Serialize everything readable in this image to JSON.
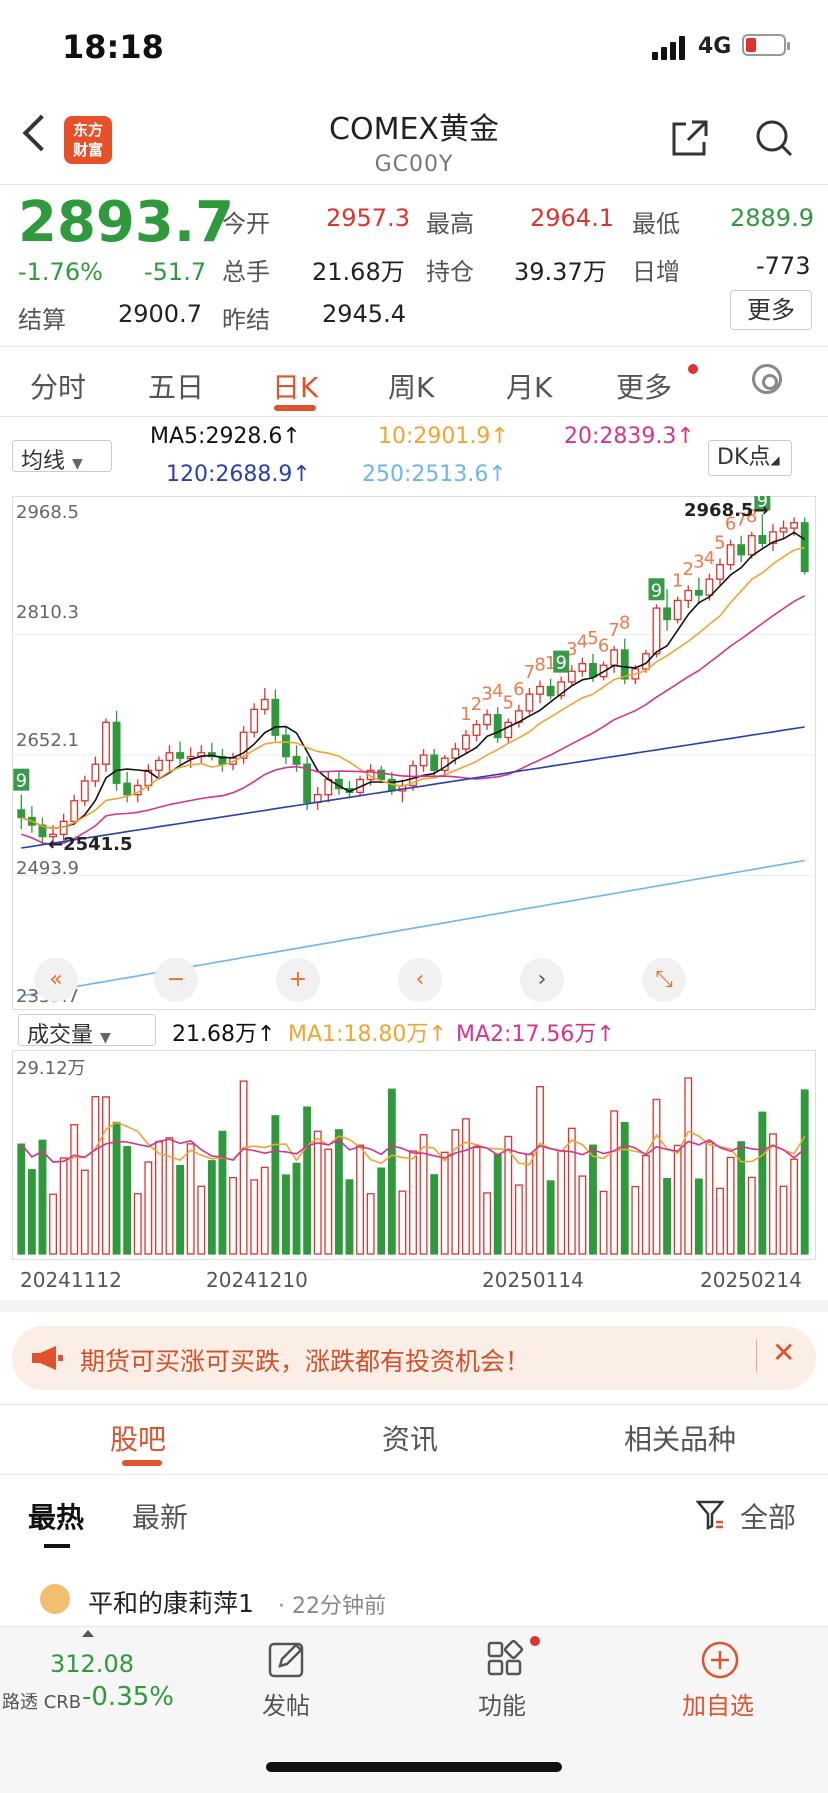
{
  "status_bar": {
    "time": "18:18",
    "network": "4G"
  },
  "header": {
    "logo": [
      "东方",
      "财富"
    ],
    "title": "COMEX黄金",
    "code": "GC00Y"
  },
  "quote": {
    "price": "2893.7",
    "change_pct": "-1.76%",
    "change": "-51.7",
    "open_label": "今开",
    "open": "2957.3",
    "high_label": "最高",
    "high": "2964.1",
    "low_label": "最低",
    "low": "2889.9",
    "volume_label": "总手",
    "volume": "21.68万",
    "oi_label": "持仓",
    "oi": "39.37万",
    "daily_inc_label": "日增",
    "daily_inc": "-773",
    "settle_label": "结算",
    "settle": "2900.7",
    "prev_settle_label": "昨结",
    "prev_settle": "2945.4",
    "more": "更多"
  },
  "tabs": [
    "分时",
    "五日",
    "日K",
    "周K",
    "月K",
    "更多"
  ],
  "ma_legend": {
    "selector": "均线",
    "ma5": "MA5:2928.6↑",
    "ma10": "10:2901.9↑",
    "ma20": "20:2839.3↑",
    "ma120": "120:2688.9↑",
    "ma250": "250:2513.6↑",
    "dk": "DK点"
  },
  "colors": {
    "up": "#e0332d",
    "down": "#2f9a3c",
    "ma5": "#111111",
    "ma10": "#f0a531",
    "ma20": "#d6338f",
    "ma120": "#2a3fb0",
    "ma250": "#6cb6ee",
    "accent": "#e0532d"
  },
  "chart_data": {
    "type": "candlestick",
    "y_ticks": [
      "2968.5",
      "2810.3",
      "2652.1",
      "2493.9",
      "2335.7"
    ],
    "ylim": [
      2335.7,
      2968.5
    ],
    "max_label": "2968.5→",
    "min_label": "←2541.5",
    "x_ticks": [
      "20241112",
      "20241210",
      "20250114",
      "20250214"
    ],
    "sequence_marks_up": [
      "1",
      "2",
      "3",
      "4",
      "5",
      "6",
      "7",
      "8",
      "1",
      "2",
      "3",
      "4",
      "5",
      "6",
      "7",
      "8",
      "1",
      "2",
      "3",
      "4",
      "5",
      "6",
      "7",
      "8"
    ],
    "sequence_marks_down": [
      "9",
      "9",
      "9",
      "9"
    ],
    "candles": [
      [
        2580,
        2600,
        2555,
        2570
      ],
      [
        2570,
        2585,
        2550,
        2560
      ],
      [
        2560,
        2570,
        2535,
        2545
      ],
      [
        2545,
        2560,
        2530,
        2548
      ],
      [
        2548,
        2575,
        2540,
        2565
      ],
      [
        2565,
        2600,
        2560,
        2592
      ],
      [
        2592,
        2625,
        2585,
        2618
      ],
      [
        2618,
        2650,
        2610,
        2640
      ],
      [
        2640,
        2700,
        2630,
        2695
      ],
      [
        2695,
        2710,
        2605,
        2615
      ],
      [
        2615,
        2630,
        2590,
        2600
      ],
      [
        2600,
        2620,
        2590,
        2612
      ],
      [
        2612,
        2640,
        2605,
        2632
      ],
      [
        2632,
        2650,
        2620,
        2645
      ],
      [
        2645,
        2665,
        2630,
        2655
      ],
      [
        2655,
        2670,
        2640,
        2648
      ],
      [
        2648,
        2662,
        2635,
        2650
      ],
      [
        2650,
        2665,
        2640,
        2655
      ],
      [
        2655,
        2668,
        2645,
        2650
      ],
      [
        2650,
        2660,
        2630,
        2640
      ],
      [
        2640,
        2655,
        2632,
        2648
      ],
      [
        2648,
        2690,
        2640,
        2682
      ],
      [
        2682,
        2720,
        2675,
        2712
      ],
      [
        2712,
        2740,
        2705,
        2725
      ],
      [
        2725,
        2738,
        2670,
        2678
      ],
      [
        2678,
        2690,
        2640,
        2650
      ],
      [
        2650,
        2665,
        2630,
        2640
      ],
      [
        2640,
        2650,
        2580,
        2590
      ],
      [
        2590,
        2610,
        2580,
        2600
      ],
      [
        2600,
        2630,
        2590,
        2620
      ],
      [
        2620,
        2630,
        2600,
        2608
      ],
      [
        2608,
        2618,
        2595,
        2603
      ],
      [
        2603,
        2625,
        2598,
        2620
      ],
      [
        2620,
        2640,
        2612,
        2632
      ],
      [
        2632,
        2638,
        2615,
        2620
      ],
      [
        2620,
        2630,
        2600,
        2605
      ],
      [
        2605,
        2620,
        2590,
        2612
      ],
      [
        2612,
        2645,
        2605,
        2638
      ],
      [
        2638,
        2660,
        2630,
        2652
      ],
      [
        2652,
        2660,
        2625,
        2632
      ],
      [
        2632,
        2652,
        2625,
        2648
      ],
      [
        2648,
        2668,
        2640,
        2660
      ],
      [
        2660,
        2685,
        2655,
        2678
      ],
      [
        2678,
        2698,
        2670,
        2692
      ],
      [
        2692,
        2712,
        2685,
        2705
      ],
      [
        2705,
        2715,
        2668,
        2675
      ],
      [
        2675,
        2700,
        2668,
        2695
      ],
      [
        2695,
        2718,
        2688,
        2710
      ],
      [
        2710,
        2740,
        2705,
        2732
      ],
      [
        2732,
        2750,
        2720,
        2742
      ],
      [
        2742,
        2752,
        2725,
        2730
      ],
      [
        2730,
        2755,
        2725,
        2748
      ],
      [
        2748,
        2770,
        2742,
        2762
      ],
      [
        2762,
        2780,
        2755,
        2772
      ],
      [
        2772,
        2785,
        2748,
        2755
      ],
      [
        2755,
        2775,
        2750,
        2770
      ],
      [
        2770,
        2795,
        2760,
        2790
      ],
      [
        2790,
        2805,
        2745,
        2752
      ],
      [
        2752,
        2770,
        2745,
        2765
      ],
      [
        2765,
        2790,
        2760,
        2785
      ],
      [
        2785,
        2850,
        2780,
        2845
      ],
      [
        2845,
        2870,
        2815,
        2830
      ],
      [
        2830,
        2860,
        2825,
        2855
      ],
      [
        2855,
        2875,
        2845,
        2868
      ],
      [
        2868,
        2885,
        2850,
        2862
      ],
      [
        2862,
        2890,
        2855,
        2883
      ],
      [
        2883,
        2910,
        2875,
        2902
      ],
      [
        2902,
        2935,
        2895,
        2928
      ],
      [
        2928,
        2940,
        2905,
        2915
      ],
      [
        2915,
        2945,
        2910,
        2940
      ],
      [
        2940,
        2968,
        2925,
        2930
      ],
      [
        2930,
        2955,
        2920,
        2945
      ],
      [
        2945,
        2960,
        2935,
        2950
      ],
      [
        2950,
        2964,
        2940,
        2957
      ],
      [
        2957,
        2964,
        2889,
        2893
      ]
    ],
    "volume_label": "成交量",
    "volume_current": "21.68万↑",
    "volume_ma1": "MA1:18.80万↑",
    "volume_ma2": "MA2:17.56万↑",
    "volume_max": "29.12万"
  },
  "banner": {
    "text": "期货可买涨可买跌，涨跌都有投资机会！"
  },
  "bottom_tabs": [
    "股吧",
    "资讯",
    "相关品种"
  ],
  "sub_tabs": [
    "最热",
    "最新"
  ],
  "filter": "全部",
  "post": {
    "author": "平和的康莉萍1",
    "time": "· 22分钟前"
  },
  "bottom_bar": {
    "index_value": "312.08",
    "index_name": "路透 CRB",
    "index_change": "-0.35%",
    "post": "发帖",
    "function": "功能",
    "add": "加自选"
  }
}
